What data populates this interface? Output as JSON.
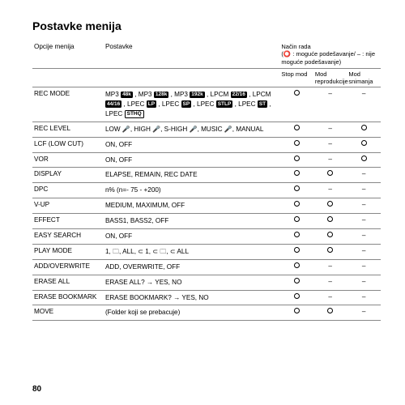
{
  "title": "Postavke menija",
  "headers": {
    "opt": "Opcije menija",
    "set": "Postavke",
    "mode": "Način rada",
    "legend": "(⭕ : moguće podešavanje/\n– : nije moguće podešavanje)",
    "stop": "Stop mod",
    "play": "Mod reprodukcije",
    "rec": "Mod snimanja"
  },
  "symbols": {
    "yes": "circle",
    "no": "–"
  },
  "rows": [
    {
      "opt": "REC MODE",
      "set_html": "MP3 <span class='badge'>48k</span> , MP3 <span class='badge'>128k</span> , MP3 <span class='badge'>192k</span> , LPCM <span class='badge'>22/16</span> , LPCM <span class='badge'>44/16</span> , LPEC <span class='badge'>LP</span> , LPEC <span class='badge'>SP</span> , LPEC <span class='badge'>STLP</span> , LPEC <span class='badge'>ST</span> , LPEC <span class='badge-outline'>STHQ</span>",
      "modes": [
        "yes",
        "no",
        "no"
      ]
    },
    {
      "opt": "REC LEVEL",
      "set_html": "LOW <span class='mic'>🎤</span>, HIGH <span class='mic'>🎤</span>, S-HIGH <span class='mic'>🎤</span>, MUSIC <span class='mic'>🎤</span>, MANUAL",
      "modes": [
        "yes",
        "no",
        "yes"
      ]
    },
    {
      "opt": "LCF (LOW CUT)",
      "set": "ON, OFF",
      "modes": [
        "yes",
        "no",
        "yes"
      ]
    },
    {
      "opt": "VOR",
      "set": "ON, OFF",
      "modes": [
        "yes",
        "no",
        "yes"
      ]
    },
    {
      "opt": "DISPLAY",
      "set": "ELAPSE, REMAIN, REC DATE",
      "modes": [
        "yes",
        "yes",
        "no"
      ]
    },
    {
      "opt": "DPC",
      "set": "n% (n=- 75 - +200)",
      "modes": [
        "yes",
        "no",
        "no"
      ]
    },
    {
      "opt": "V-UP",
      "set": "MEDIUM, MAXIMUM, OFF",
      "modes": [
        "yes",
        "yes",
        "no"
      ]
    },
    {
      "opt": "EFFECT",
      "set": "BASS1, BASS2, OFF",
      "modes": [
        "yes",
        "yes",
        "no"
      ]
    },
    {
      "opt": "EASY SEARCH",
      "set": "ON, OFF",
      "modes": [
        "yes",
        "yes",
        "no"
      ]
    },
    {
      "opt": "PLAY MODE",
      "set_html": "1, <span class='small-icon'>🗀</span>, ALL, <span class='small-icon'>⊂</span> 1, <span class='small-icon'>⊂</span> <span class='small-icon'>🗀</span>, <span class='small-icon'>⊂</span> ALL",
      "modes": [
        "yes",
        "yes",
        "no"
      ]
    },
    {
      "opt": "ADD/OVERWRITE",
      "set": "ADD, OVERWRITE, OFF",
      "modes": [
        "yes",
        "no",
        "no"
      ]
    },
    {
      "opt": "ERASE ALL",
      "set": "ERASE ALL? → YES, NO",
      "modes": [
        "yes",
        "no",
        "no"
      ]
    },
    {
      "opt": "ERASE BOOKMARK",
      "set": "ERASE BOOKMARK? → YES, NO",
      "modes": [
        "yes",
        "no",
        "no"
      ]
    },
    {
      "opt": "MOVE",
      "set": "(Folder koji se prebacuje)",
      "modes": [
        "yes",
        "yes",
        "no"
      ]
    }
  ],
  "page": "80"
}
